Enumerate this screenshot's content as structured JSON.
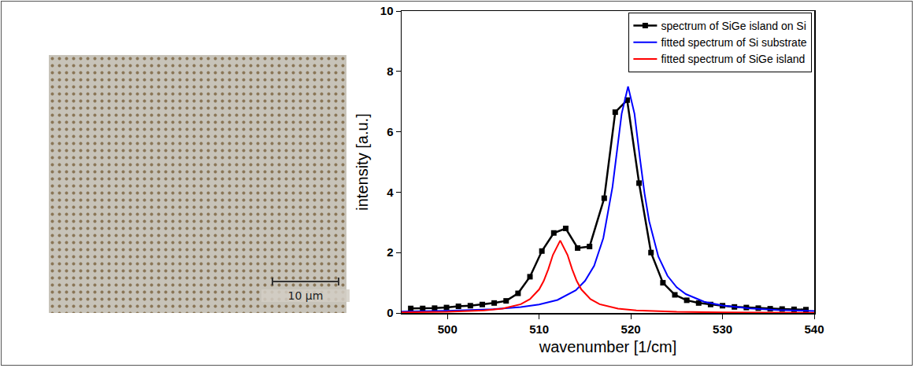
{
  "image": {
    "scale_bar": "10 µm"
  },
  "chart_data": {
    "type": "line",
    "xlabel": "wavenumber [1/cm]",
    "ylabel": "intensity [a.u.]",
    "xlim": [
      495,
      540
    ],
    "xticks": [
      500,
      510,
      520,
      530,
      540
    ],
    "ylim": [
      0,
      10
    ],
    "yticks": [
      0,
      2,
      4,
      6,
      8,
      10
    ],
    "grid": false,
    "legend": "upper right",
    "series": [
      {
        "name": "spectrum of SiGe island on Si",
        "color": "#000000",
        "marker": "square",
        "line_style": "solid",
        "x": [
          496,
          497.3,
          498.6,
          499.9,
          501.2,
          502.5,
          503.8,
          505.1,
          506.4,
          507.7,
          509.0,
          510.3,
          511.6,
          512.9,
          514.2,
          515.5,
          517.1,
          518.3,
          519.6,
          520.9,
          522.2,
          523.5,
          524.8,
          526.1,
          527.4,
          528.7,
          530.0,
          531.3,
          532.6,
          533.9,
          535.2,
          536.5,
          537.8,
          539.1
        ],
        "values": [
          0.15,
          0.15,
          0.16,
          0.18,
          0.22,
          0.24,
          0.28,
          0.33,
          0.4,
          0.65,
          1.2,
          2.05,
          2.65,
          2.8,
          2.15,
          2.2,
          3.8,
          6.65,
          7.05,
          4.3,
          2.0,
          1.0,
          0.6,
          0.42,
          0.33,
          0.28,
          0.24,
          0.2,
          0.18,
          0.16,
          0.14,
          0.13,
          0.12,
          0.11
        ]
      },
      {
        "name": "fitted spectrum of Si substrate",
        "color": "#0000ff",
        "marker": "none",
        "line_style": "solid",
        "x": [
          495,
          500,
          505,
          508,
          510,
          512,
          514,
          515,
          516,
          517,
          518,
          518.5,
          519,
          519.7,
          520.4,
          521,
          521.5,
          522,
          523,
          524,
          525,
          526,
          528,
          530,
          533,
          536,
          540
        ],
        "values": [
          0.044,
          0.069,
          0.123,
          0.193,
          0.278,
          0.43,
          0.75,
          1.06,
          1.56,
          2.48,
          4.17,
          5.36,
          6.6,
          7.5,
          6.6,
          5.11,
          3.95,
          3.04,
          1.87,
          1.23,
          0.85,
          0.625,
          0.373,
          0.247,
          0.15,
          0.1,
          0.065
        ]
      },
      {
        "name": "fitted spectrum of SiGe island",
        "color": "#ff0000",
        "marker": "none",
        "line_style": "solid",
        "x": [
          495,
          500,
          504,
          506,
          508,
          509,
          510,
          510.5,
          511,
          511.5,
          512.3,
          513.1,
          513.6,
          514.1,
          514.6,
          515.6,
          516.6,
          518.6,
          520.6,
          525,
          530,
          540
        ],
        "values": [
          0.02,
          0.04,
          0.086,
          0.145,
          0.29,
          0.457,
          0.78,
          1.06,
          1.45,
          1.92,
          2.4,
          1.92,
          1.45,
          1.06,
          0.78,
          0.457,
          0.29,
          0.145,
          0.086,
          0.037,
          0.019,
          0.008
        ]
      }
    ]
  }
}
